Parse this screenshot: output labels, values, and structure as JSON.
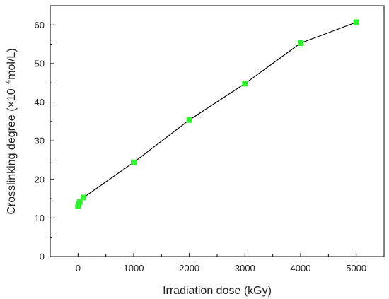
{
  "chart_data": {
    "type": "line",
    "xlabel": "Irradiation dose (kGy)",
    "ylabel": {
      "prefix": "Crosslinking degree (×10",
      "superscript": "−4",
      "suffix": "mol/L)"
    },
    "xlim": [
      -500,
      5500
    ],
    "ylim": [
      0,
      65
    ],
    "xticks": [
      0,
      1000,
      2000,
      3000,
      4000,
      5000
    ],
    "yticks": [
      0,
      10,
      20,
      30,
      40,
      50,
      60
    ],
    "grid": false,
    "series": [
      {
        "x": [
          0,
          10,
          30,
          100,
          1000,
          2000,
          3000,
          4000,
          5000
        ],
        "y": [
          13.0,
          13.6,
          14.2,
          15.3,
          24.4,
          35.4,
          44.8,
          55.3,
          60.7
        ],
        "line_color": "#000000",
        "marker_color": "#33ee33",
        "marker": "square"
      }
    ]
  }
}
